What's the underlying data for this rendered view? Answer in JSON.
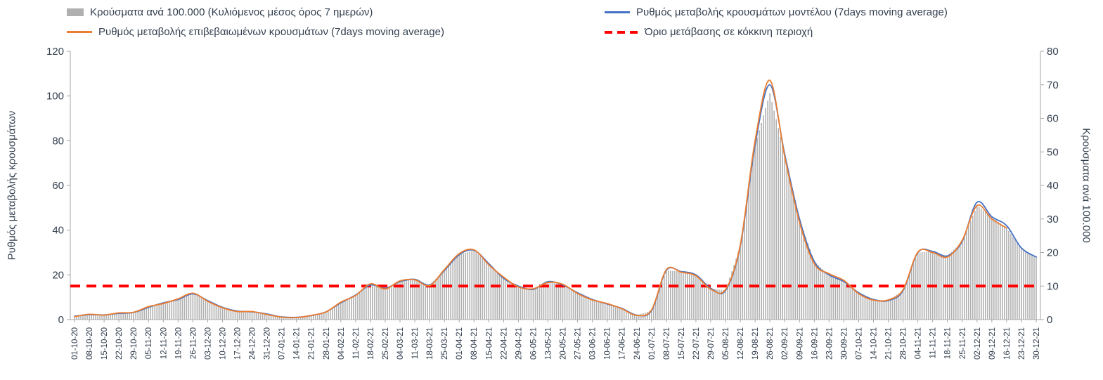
{
  "chart_data": {
    "type": "bar",
    "title": "",
    "x_interval": "weekly",
    "legend_position": "top",
    "grid": false,
    "categories": [
      "01-10-20",
      "08-10-20",
      "15-10-20",
      "22-10-20",
      "29-10-20",
      "05-11-20",
      "12-11-20",
      "19-11-20",
      "26-11-20",
      "03-12-20",
      "10-12-20",
      "17-12-20",
      "24-12-20",
      "31-12-20",
      "07-01-21",
      "14-01-21",
      "21-01-21",
      "28-01-21",
      "04-02-21",
      "11-02-21",
      "18-02-21",
      "25-02-21",
      "04-03-21",
      "11-03-21",
      "18-03-21",
      "25-03-21",
      "01-04-21",
      "08-04-21",
      "15-04-21",
      "22-04-21",
      "29-04-21",
      "06-05-21",
      "13-05-21",
      "20-05-21",
      "27-05-21",
      "03-06-21",
      "10-06-21",
      "17-06-21",
      "24-06-21",
      "01-07-21",
      "08-07-21",
      "15-07-21",
      "22-07-21",
      "29-07-21",
      "05-08-21",
      "12-08-21",
      "19-08-21",
      "26-08-21",
      "02-09-21",
      "09-09-21",
      "16-09-21",
      "23-09-21",
      "30-09-21",
      "07-10-21",
      "14-10-21",
      "21-10-21",
      "28-10-21",
      "04-11-21",
      "11-11-21",
      "18-11-21",
      "25-11-21",
      "02-12-21",
      "09-12-21",
      "16-12-21",
      "23-12-21",
      "30-12-21"
    ],
    "left_axis": {
      "label": "Ρυθμός μεταβολής κρουσμάτων",
      "min": 0,
      "max": 120,
      "step": 20
    },
    "right_axis": {
      "label": "Κρούσματα ανά 100.000",
      "min": 0,
      "max": 80,
      "step": 10
    },
    "threshold": {
      "label": "Όριο μετάβασης σε κόκκινη περιοχή",
      "value_left_axis": 15,
      "value_right_axis": 10,
      "color": "#FF0000"
    },
    "series": [
      {
        "id": "cases-bars",
        "name": "Κρούσματα ανά 100.000 (Κυλιόμενος μέσος όρος 7 ημερών)",
        "type": "bar",
        "axis": "right",
        "color": "#b0b0b0",
        "values": [
          0.7,
          1.5,
          1.4,
          1.9,
          2.1,
          3.8,
          4.9,
          6.1,
          7.7,
          5.6,
          3.7,
          2.6,
          2.3,
          1.7,
          0.8,
          0.7,
          1.2,
          2.3,
          5.0,
          7.3,
          10.3,
          9.3,
          11.3,
          12.0,
          10.3,
          14.7,
          19.3,
          20.7,
          16.7,
          12.3,
          10.0,
          9.0,
          11.3,
          10.3,
          8.0,
          6.0,
          4.7,
          3.3,
          1.3,
          2.7,
          14.7,
          14.3,
          13.3,
          9.3,
          8.7,
          22.0,
          52.0,
          67.5,
          49.3,
          30.0,
          17.3,
          13.3,
          11.3,
          8.0,
          6.0,
          5.7,
          8.7,
          20.0,
          20.3,
          19.0,
          23.3,
          34.0,
          30.7,
          27.3,
          21.3,
          18.7
        ]
      },
      {
        "id": "model-line",
        "name": "Ρυθμός μεταβολής κρουσμάτων μοντέλου (7days moving average)",
        "type": "line",
        "axis": "left",
        "color": "#4472C4",
        "values": [
          1.5,
          2.2,
          2.1,
          2.8,
          3.2,
          5.5,
          7.5,
          9.0,
          11.5,
          8.5,
          5.5,
          3.8,
          3.5,
          2.5,
          1.2,
          1.0,
          1.8,
          3.5,
          7.5,
          11.0,
          15.5,
          14.0,
          17.0,
          18.0,
          15.5,
          22.0,
          29.0,
          31.0,
          25.0,
          18.5,
          15.0,
          13.5,
          17.0,
          15.5,
          12.0,
          9.0,
          7.0,
          5.0,
          2.0,
          4.0,
          22.0,
          21.5,
          20.0,
          14.0,
          13.0,
          33.0,
          78.0,
          105.0,
          74.0,
          45.0,
          26.0,
          20.0,
          17.0,
          12.0,
          9.0,
          8.5,
          13.0,
          30.0,
          30.5,
          28.5,
          35.0,
          52.5,
          46.0,
          42.0,
          32.0,
          28.0
        ]
      },
      {
        "id": "confirmed-line",
        "name": "Ρυθμός μεταβολής επιβεβαιωμένων κρουσμάτων (7days moving average)",
        "type": "line",
        "axis": "left",
        "color": "#ED7D31",
        "values": [
          1.3,
          2.4,
          2.0,
          3.0,
          3.3,
          5.8,
          7.2,
          9.3,
          11.8,
          8.2,
          5.3,
          3.6,
          3.6,
          2.3,
          1.1,
          0.9,
          1.9,
          3.4,
          7.8,
          10.8,
          16.0,
          13.7,
          17.3,
          17.8,
          15.2,
          22.4,
          29.5,
          31.2,
          24.5,
          19.0,
          14.6,
          13.8,
          16.6,
          15.8,
          11.7,
          8.8,
          7.2,
          4.8,
          1.9,
          4.3,
          22.3,
          21.2,
          19.6,
          13.6,
          13.4,
          33.5,
          80.0,
          107.0,
          73.0,
          43.5,
          25.0,
          20.5,
          17.5,
          11.6,
          8.7,
          8.8,
          13.4,
          30.2,
          30.0,
          28.0,
          35.5,
          51.0,
          45.0,
          41.0,
          null,
          null
        ]
      }
    ]
  }
}
